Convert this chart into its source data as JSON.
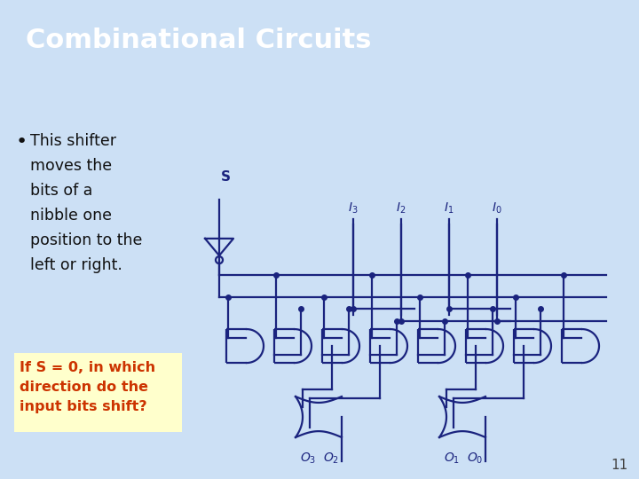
{
  "title": "Combinational Circuits",
  "title_color": "#ffffff",
  "title_bg_color": "#2272C3",
  "slide_bg_color": "#cce0f5",
  "circuit_color": "#1a237e",
  "bullet_text_lines": [
    "This shifter",
    "moves the",
    "bits of a",
    "nibble one",
    "position to the",
    "left or right."
  ],
  "question_text": "If S = 0, in which\ndirection do the\ninput bits shift?",
  "question_color": "#cc3300",
  "question_bg": "#ffffcc",
  "page_number": "11",
  "s_label": "S",
  "input_labels": [
    "I3",
    "I2",
    "I1",
    "I0"
  ],
  "output_labels": [
    "O3",
    "O2",
    "O1",
    "O0"
  ]
}
